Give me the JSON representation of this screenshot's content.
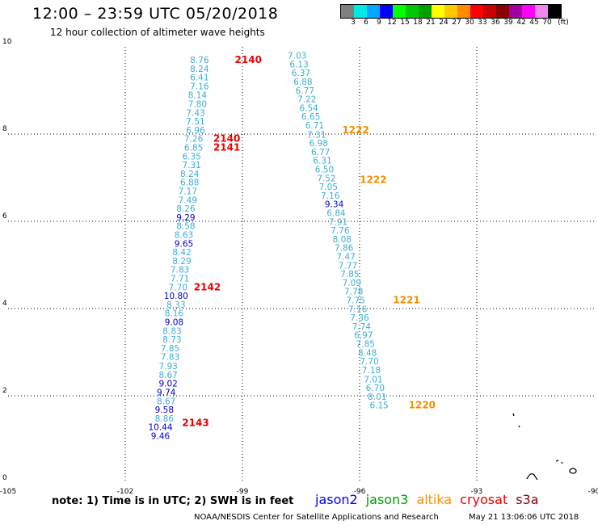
{
  "header": {
    "title": "12:00 – 23:59 UTC 05/20/2018",
    "subtitle": "12 hour collection of altimeter wave heights"
  },
  "legend": {
    "colors": [
      "#808080",
      "#00e8e8",
      "#00a8ff",
      "#0000ff",
      "#00ff00",
      "#00c800",
      "#00a000",
      "#ffff00",
      "#ffc800",
      "#ff8c00",
      "#ff0000",
      "#c80000",
      "#8b0000",
      "#a000a0",
      "#ff00ff",
      "#ee88ee",
      "#000000"
    ],
    "labels": [
      "3",
      "6",
      "9",
      "12",
      "15",
      "18",
      "21",
      "24",
      "27",
      "30",
      "33",
      "36",
      "39",
      "42",
      "45",
      "70",
      "(ft)"
    ]
  },
  "chart_data": {
    "type": "scatter",
    "xlim": [
      -105,
      -90
    ],
    "ylim": [
      0,
      10
    ],
    "x_ticks": [
      "-105",
      "-102",
      "-99",
      "-96",
      "-93",
      "-90"
    ],
    "y_ticks": [
      "0",
      "2",
      "4",
      "6",
      "8",
      "10"
    ],
    "grid": true,
    "series": [
      {
        "name": "altika",
        "color": "#3aaed8",
        "points": [
          {
            "x": -100.1,
            "y": 9.63,
            "v": "8.76"
          },
          {
            "x": -100.1,
            "y": 9.43,
            "v": "8.24"
          },
          {
            "x": -100.1,
            "y": 9.23,
            "v": "6.41"
          },
          {
            "x": -100.1,
            "y": 9.03,
            "v": "7.16"
          },
          {
            "x": -100.15,
            "y": 8.82,
            "v": "8.14"
          },
          {
            "x": -100.15,
            "y": 8.62,
            "v": "7.80"
          },
          {
            "x": -100.2,
            "y": 8.42,
            "v": "7.43"
          },
          {
            "x": -100.2,
            "y": 8.22,
            "v": "7.51"
          },
          {
            "x": -100.2,
            "y": 8.02,
            "v": "6.96"
          },
          {
            "x": -100.25,
            "y": 7.82,
            "v": "7.26"
          },
          {
            "x": -100.25,
            "y": 7.62,
            "v": "6.85"
          },
          {
            "x": -100.3,
            "y": 7.42,
            "v": "6.35"
          },
          {
            "x": -100.3,
            "y": 7.22,
            "v": "7.31"
          },
          {
            "x": -100.35,
            "y": 7.02,
            "v": "8.24"
          },
          {
            "x": -100.35,
            "y": 6.82,
            "v": "6.88"
          },
          {
            "x": -100.4,
            "y": 6.62,
            "v": "7.17"
          },
          {
            "x": -100.4,
            "y": 6.42,
            "v": "7.49"
          },
          {
            "x": -100.45,
            "y": 6.22,
            "v": "8.26"
          },
          {
            "x": -100.45,
            "y": 5.82,
            "v": "8.58"
          },
          {
            "x": -100.5,
            "y": 5.62,
            "v": "8.63"
          },
          {
            "x": -100.55,
            "y": 5.22,
            "v": "8.42"
          },
          {
            "x": -100.55,
            "y": 5.02,
            "v": "8.29"
          },
          {
            "x": -100.6,
            "y": 4.82,
            "v": "7.83"
          },
          {
            "x": -100.6,
            "y": 4.62,
            "v": "7.71"
          },
          {
            "x": -100.65,
            "y": 4.42,
            "v": "7.70"
          },
          {
            "x": -100.7,
            "y": 4.02,
            "v": "8.33"
          },
          {
            "x": -100.75,
            "y": 3.82,
            "v": "8.16"
          },
          {
            "x": -100.8,
            "y": 3.42,
            "v": "8.83"
          },
          {
            "x": -100.8,
            "y": 3.22,
            "v": "8.73"
          },
          {
            "x": -100.85,
            "y": 3.02,
            "v": "7.85"
          },
          {
            "x": -100.85,
            "y": 2.82,
            "v": "7.83"
          },
          {
            "x": -100.9,
            "y": 2.61,
            "v": "7.93"
          },
          {
            "x": -100.9,
            "y": 2.41,
            "v": "8.67"
          },
          {
            "x": -100.95,
            "y": 1.81,
            "v": "8.67"
          },
          {
            "x": -101.0,
            "y": 1.41,
            "v": "8.86"
          },
          {
            "x": -97.6,
            "y": 9.73,
            "v": "7.03"
          },
          {
            "x": -97.55,
            "y": 9.53,
            "v": "6.13"
          },
          {
            "x": -97.5,
            "y": 9.33,
            "v": "6.37"
          },
          {
            "x": -97.45,
            "y": 9.13,
            "v": "6.88"
          },
          {
            "x": -97.4,
            "y": 8.93,
            "v": "6.77"
          },
          {
            "x": -97.35,
            "y": 8.73,
            "v": "7.22"
          },
          {
            "x": -97.3,
            "y": 8.53,
            "v": "6.54"
          },
          {
            "x": -97.25,
            "y": 8.33,
            "v": "6.65"
          },
          {
            "x": -97.15,
            "y": 8.13,
            "v": "6.71"
          },
          {
            "x": -97.1,
            "y": 7.92,
            "v": "7.31"
          },
          {
            "x": -97.05,
            "y": 7.72,
            "v": "6.98"
          },
          {
            "x": -97.0,
            "y": 7.52,
            "v": "6.77"
          },
          {
            "x": -96.95,
            "y": 7.32,
            "v": "6.31"
          },
          {
            "x": -96.9,
            "y": 7.12,
            "v": "6.50"
          },
          {
            "x": -96.85,
            "y": 6.92,
            "v": "7.52"
          },
          {
            "x": -96.8,
            "y": 6.72,
            "v": "7.05"
          },
          {
            "x": -96.75,
            "y": 6.52,
            "v": "7.16"
          },
          {
            "x": -96.6,
            "y": 6.12,
            "v": "6.84"
          },
          {
            "x": -96.55,
            "y": 5.92,
            "v": "7.91"
          },
          {
            "x": -96.5,
            "y": 5.72,
            "v": "7.76"
          },
          {
            "x": -96.45,
            "y": 5.52,
            "v": "8.08"
          },
          {
            "x": -96.4,
            "y": 5.32,
            "v": "7.86"
          },
          {
            "x": -96.35,
            "y": 5.12,
            "v": "7.47"
          },
          {
            "x": -96.3,
            "y": 4.92,
            "v": "7.77"
          },
          {
            "x": -96.25,
            "y": 4.72,
            "v": "7.85"
          },
          {
            "x": -96.2,
            "y": 4.52,
            "v": "7.09"
          },
          {
            "x": -96.15,
            "y": 4.32,
            "v": "7.78"
          },
          {
            "x": -96.1,
            "y": 4.12,
            "v": "7.75"
          },
          {
            "x": -96.05,
            "y": 3.92,
            "v": "7.16"
          },
          {
            "x": -96.0,
            "y": 3.72,
            "v": "7.36"
          },
          {
            "x": -95.95,
            "y": 3.52,
            "v": "7.74"
          },
          {
            "x": -95.9,
            "y": 3.32,
            "v": "6.97"
          },
          {
            "x": -95.85,
            "y": 3.12,
            "v": "7.85"
          },
          {
            "x": -95.8,
            "y": 2.92,
            "v": "8.48"
          },
          {
            "x": -95.75,
            "y": 2.72,
            "v": "7.70"
          },
          {
            "x": -95.7,
            "y": 2.52,
            "v": "7.18"
          },
          {
            "x": -95.65,
            "y": 2.31,
            "v": "7.01"
          },
          {
            "x": -95.6,
            "y": 2.11,
            "v": "6.70"
          },
          {
            "x": -95.55,
            "y": 1.91,
            "v": "8.01"
          },
          {
            "x": -95.5,
            "y": 1.71,
            "v": "6.15"
          }
        ]
      },
      {
        "name": "jason2",
        "color": "#0000c8",
        "points": [
          {
            "x": -100.45,
            "y": 6.02,
            "v": "9.29"
          },
          {
            "x": -100.5,
            "y": 5.42,
            "v": "9.65"
          },
          {
            "x": -100.7,
            "y": 4.22,
            "v": "10.80"
          },
          {
            "x": -100.75,
            "y": 3.62,
            "v": "9.08"
          },
          {
            "x": -100.9,
            "y": 2.21,
            "v": "9.02"
          },
          {
            "x": -100.95,
            "y": 2.01,
            "v": "9.74"
          },
          {
            "x": -101.0,
            "y": 1.61,
            "v": "9.58"
          },
          {
            "x": -101.1,
            "y": 1.21,
            "v": "10.44"
          },
          {
            "x": -101.1,
            "y": 1.01,
            "v": "9.46"
          },
          {
            "x": -96.65,
            "y": 6.32,
            "v": "9.34"
          }
        ]
      }
    ],
    "time_labels": [
      {
        "x": -98.85,
        "y": 9.63,
        "label": "2140",
        "color": "#ee0000"
      },
      {
        "x": -99.4,
        "y": 7.82,
        "label": "2140",
        "color": "#ee0000"
      },
      {
        "x": -99.4,
        "y": 7.62,
        "label": "2141",
        "color": "#ee0000"
      },
      {
        "x": -99.9,
        "y": 4.42,
        "label": "2142",
        "color": "#ee0000"
      },
      {
        "x": -100.2,
        "y": 1.31,
        "label": "2143",
        "color": "#ee0000"
      },
      {
        "x": -96.1,
        "y": 8.02,
        "label": "1222",
        "color": "#f29000"
      },
      {
        "x": -95.65,
        "y": 6.88,
        "label": "1222",
        "color": "#f29000"
      },
      {
        "x": -94.8,
        "y": 4.12,
        "label": "1221",
        "color": "#f29000"
      },
      {
        "x": -94.4,
        "y": 1.71,
        "label": "1220",
        "color": "#f29000"
      }
    ]
  },
  "footer": {
    "note": "note: 1) Time is in UTC; 2) SWH is in feet",
    "satellites": [
      {
        "label": "jason2",
        "color": "#0000ff"
      },
      {
        "label": "jason3",
        "color": "#00a000"
      },
      {
        "label": "altika",
        "color": "#ff9000"
      },
      {
        "label": "cryosat",
        "color": "#ee0000"
      },
      {
        "label": "s3a",
        "color": "#8b0000"
      }
    ],
    "credit": "NOAA/NESDIS Center for Satellite Applications and Research",
    "timestamp": "May 21 13:06:06 UTC 2018"
  }
}
